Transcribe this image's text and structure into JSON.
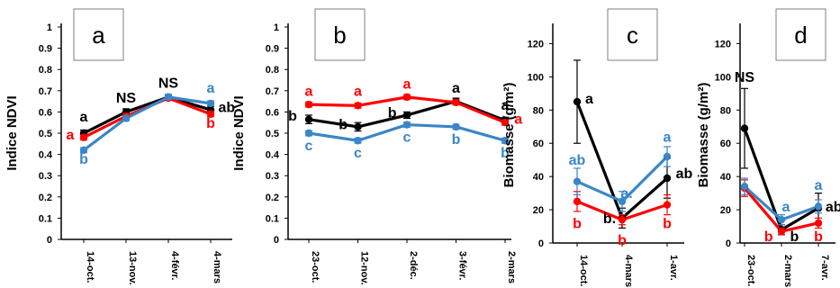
{
  "chart_data": [
    {
      "type": "line",
      "panel_label": "a",
      "ylabel": "Indice NDVI",
      "ylim": [
        0,
        1
      ],
      "yticks": [
        "0",
        "0.1",
        "0.2",
        "0.3",
        "0.4",
        "0.5",
        "0.6",
        "0.7",
        "0.8",
        "0.9",
        "1"
      ],
      "categories": [
        "14-oct.",
        "13-nov.",
        "4-févr.",
        "4-mars"
      ],
      "series": [
        {
          "color": "#000000",
          "values": [
            0.5,
            0.6,
            0.67,
            0.61
          ],
          "errors": [
            0.015,
            0.015,
            0.012,
            0.015
          ]
        },
        {
          "color": "#ff0000",
          "values": [
            0.48,
            0.58,
            0.665,
            0.59
          ],
          "errors": [
            0.012,
            0.012,
            0.01,
            0.012
          ]
        },
        {
          "color": "#3a86c8",
          "values": [
            0.42,
            0.57,
            0.67,
            0.64
          ],
          "errors": [
            0.012,
            0.012,
            0.01,
            0.012
          ]
        }
      ],
      "annotations": [
        {
          "text": "a",
          "color": "#000000",
          "x": 0,
          "y": 0.555
        },
        {
          "text": "a",
          "color": "#ff0000",
          "x": -0.32,
          "y": 0.47
        },
        {
          "text": "b",
          "color": "#3a86c8",
          "x": 0,
          "y": 0.355
        },
        {
          "text": "NS",
          "color": "#000000",
          "x": 1,
          "y": 0.645
        },
        {
          "text": "NS",
          "color": "#000000",
          "x": 2,
          "y": 0.715
        },
        {
          "text": "a",
          "color": "#3a86c8",
          "x": 3,
          "y": 0.69
        },
        {
          "text": "ab",
          "color": "#000000",
          "x": 3.38,
          "y": 0.6
        },
        {
          "text": "b",
          "color": "#ff0000",
          "x": 3,
          "y": 0.525
        }
      ]
    },
    {
      "type": "line",
      "panel_label": "b",
      "ylabel": "Indice NDVI",
      "ylim": [
        0,
        1
      ],
      "yticks": [
        "0",
        "0.1",
        "0.2",
        "0.3",
        "0.4",
        "0.5",
        "0.6",
        "0.7",
        "0.8",
        "0.9",
        "1"
      ],
      "categories": [
        "23-oct.",
        "12-nov.",
        "2-déc.",
        "3-févr.",
        "2-mars"
      ],
      "series": [
        {
          "color": "#000000",
          "values": [
            0.565,
            0.53,
            0.585,
            0.65,
            0.56
          ],
          "errors": [
            0.02,
            0.02,
            0.015,
            0.015,
            0.015
          ]
        },
        {
          "color": "#ff0000",
          "values": [
            0.635,
            0.63,
            0.67,
            0.645,
            0.55
          ],
          "errors": [
            0.012,
            0.012,
            0.012,
            0.012,
            0.012
          ]
        },
        {
          "color": "#3a86c8",
          "values": [
            0.5,
            0.465,
            0.54,
            0.53,
            0.465
          ],
          "errors": [
            0.012,
            0.012,
            0.012,
            0.012,
            0.012
          ]
        }
      ],
      "annotations": [
        {
          "text": "a",
          "color": "#ff0000",
          "x": 0,
          "y": 0.675
        },
        {
          "text": "b",
          "color": "#000000",
          "x": -0.33,
          "y": 0.56
        },
        {
          "text": "c",
          "color": "#3a86c8",
          "x": 0,
          "y": 0.42
        },
        {
          "text": "a",
          "color": "#ff0000",
          "x": 1,
          "y": 0.675
        },
        {
          "text": "b",
          "color": "#000000",
          "x": 0.7,
          "y": 0.52
        },
        {
          "text": "c",
          "color": "#3a86c8",
          "x": 1,
          "y": 0.385
        },
        {
          "text": "a",
          "color": "#ff0000",
          "x": 2,
          "y": 0.71
        },
        {
          "text": "b",
          "color": "#000000",
          "x": 1.7,
          "y": 0.575
        },
        {
          "text": "c",
          "color": "#3a86c8",
          "x": 2,
          "y": 0.46
        },
        {
          "text": "a",
          "color": "#000000",
          "x": 3,
          "y": 0.69
        },
        {
          "text": "b",
          "color": "#3a86c8",
          "x": 3,
          "y": 0.45
        },
        {
          "text": "a",
          "color": "#000000",
          "x": 4,
          "y": 0.61
        },
        {
          "text": "a",
          "color": "#ff0000",
          "x": 4.27,
          "y": 0.545
        },
        {
          "text": "b",
          "color": "#3a86c8",
          "x": 4,
          "y": 0.385
        }
      ]
    },
    {
      "type": "line",
      "panel_label": "c",
      "ylabel": "Biomasse (g/m²)",
      "ylim": [
        0,
        130
      ],
      "yticks": [
        "0",
        "20",
        "40",
        "60",
        "80",
        "100",
        "120"
      ],
      "categories": [
        "14-oct.",
        "4-mars",
        "1-avr."
      ],
      "series": [
        {
          "color": "#000000",
          "values": [
            85,
            15,
            39
          ],
          "errors": [
            25,
            6,
            12
          ]
        },
        {
          "color": "#ff0000",
          "values": [
            25,
            14,
            23
          ],
          "errors": [
            6,
            3,
            6
          ]
        },
        {
          "color": "#3a86c8",
          "values": [
            37,
            25,
            52
          ],
          "errors": [
            8,
            6,
            6
          ]
        }
      ],
      "annotations": [
        {
          "text": "a",
          "color": "#000000",
          "x": 0.27,
          "y": 84
        },
        {
          "text": "ab",
          "color": "#3a86c8",
          "x": 0,
          "y": 47
        },
        {
          "text": "b",
          "color": "#ff0000",
          "x": 0,
          "y": 9
        },
        {
          "text": "a.",
          "color": "#3a86c8",
          "x": 1.1,
          "y": 27
        },
        {
          "text": "b.",
          "color": "#000000",
          "x": 0.72,
          "y": 12
        },
        {
          "text": "b",
          "color": "#ff0000",
          "x": 1,
          "y": -1
        },
        {
          "text": "a",
          "color": "#3a86c8",
          "x": 2,
          "y": 61
        },
        {
          "text": "ab",
          "color": "#000000",
          "x": 2.38,
          "y": 39
        },
        {
          "text": "b",
          "color": "#ff0000",
          "x": 2,
          "y": 9
        }
      ]
    },
    {
      "type": "line",
      "panel_label": "d",
      "ylabel": "Biomasse (g/m²)",
      "ylim": [
        0,
        130
      ],
      "yticks": [
        "0",
        "20",
        "40",
        "60",
        "80",
        "100",
        "120"
      ],
      "categories": [
        "23-oct.",
        "2-mars",
        "7-avr."
      ],
      "series": [
        {
          "color": "#000000",
          "values": [
            69,
            8,
            21
          ],
          "errors": [
            24,
            3,
            9
          ]
        },
        {
          "color": "#ff0000",
          "values": [
            33,
            7,
            12
          ],
          "errors": [
            5,
            2,
            3
          ]
        },
        {
          "color": "#3a86c8",
          "values": [
            34,
            14,
            22
          ],
          "errors": [
            5,
            3,
            4
          ]
        }
      ],
      "annotations": [
        {
          "text": "NS",
          "color": "#000000",
          "x": 0,
          "y": 97
        },
        {
          "text": "a",
          "color": "#3a86c8",
          "x": 1.12,
          "y": 19
        },
        {
          "text": "b",
          "color": "#ff0000",
          "x": 0.65,
          "y": 1
        },
        {
          "text": "b",
          "color": "#000000",
          "x": 1.35,
          "y": 1
        },
        {
          "text": "a",
          "color": "#3a86c8",
          "x": 2,
          "y": 32
        },
        {
          "text": "ab",
          "color": "#000000",
          "x": 2.42,
          "y": 19
        },
        {
          "text": "b",
          "color": "#ff0000",
          "x": 2,
          "y": 1
        }
      ]
    }
  ]
}
